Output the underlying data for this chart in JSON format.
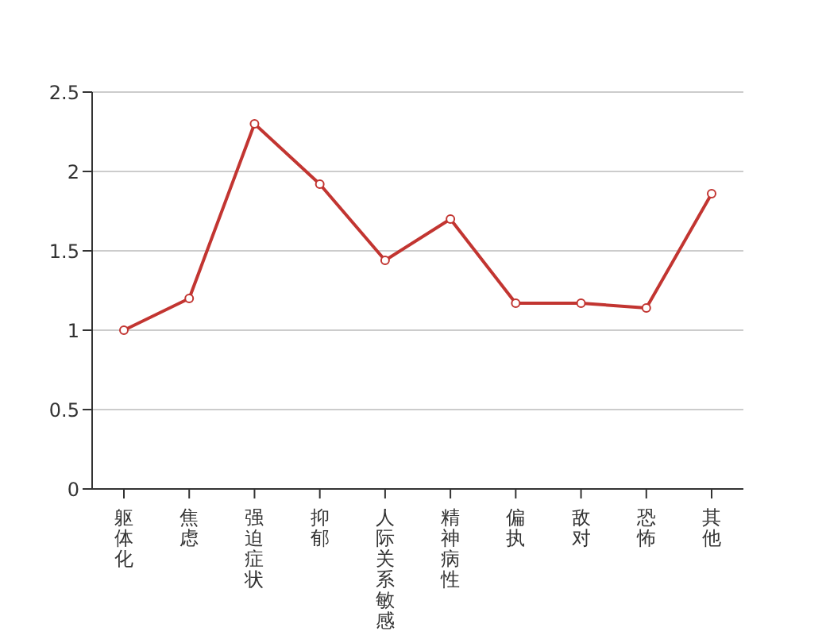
{
  "chart_data": {
    "type": "line",
    "categories": [
      "躯体化",
      "焦虑",
      "强迫症状",
      "抑郁",
      "人际关系敏感",
      "精神病性",
      "偏执",
      "敌对",
      "恐怖",
      "其他"
    ],
    "series": [
      {
        "color": "#c23531",
        "values": [
          1.0,
          1.2,
          2.3,
          1.92,
          1.44,
          1.7,
          1.17,
          1.17,
          1.14,
          1.86
        ]
      }
    ],
    "ylim": [
      0,
      2.5
    ],
    "yticks": [
      0,
      0.5,
      1,
      1.5,
      2,
      2.5
    ],
    "grid": "y",
    "marker": "circle",
    "legend": false
  }
}
